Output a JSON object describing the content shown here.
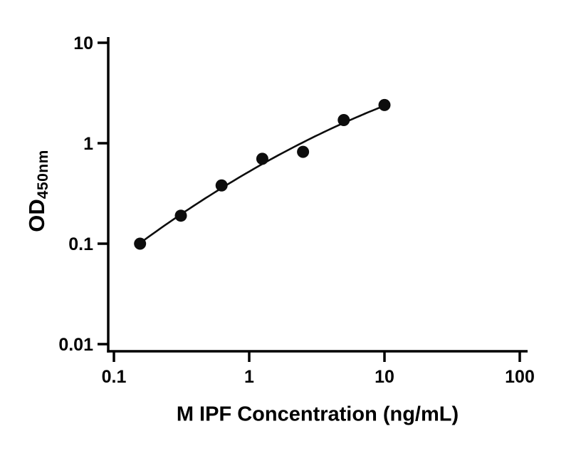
{
  "chart_data": {
    "type": "scatter",
    "title": "",
    "xlabel": "M IPF Concentration (ng/mL)",
    "ylabel": "OD",
    "ylabel_sub": "450nm",
    "xscale": "log",
    "yscale": "log",
    "xlim": [
      0.1,
      100
    ],
    "ylim": [
      0.01,
      10
    ],
    "x_ticks": [
      "0.1",
      "1",
      "10",
      "100"
    ],
    "y_ticks": [
      "0.01",
      "0.1",
      "1",
      "10"
    ],
    "grid": false,
    "legend": "none",
    "points": {
      "x": [
        0.156,
        0.3125,
        0.625,
        1.25,
        2.5,
        5,
        10
      ],
      "y": [
        0.1,
        0.19,
        0.38,
        0.7,
        0.82,
        1.7,
        2.4
      ]
    },
    "fit": "quadratic-in-log-log",
    "marker_color": "#0d0d0d",
    "line_color": "#0d0d0d",
    "axis_color": "#000000"
  }
}
